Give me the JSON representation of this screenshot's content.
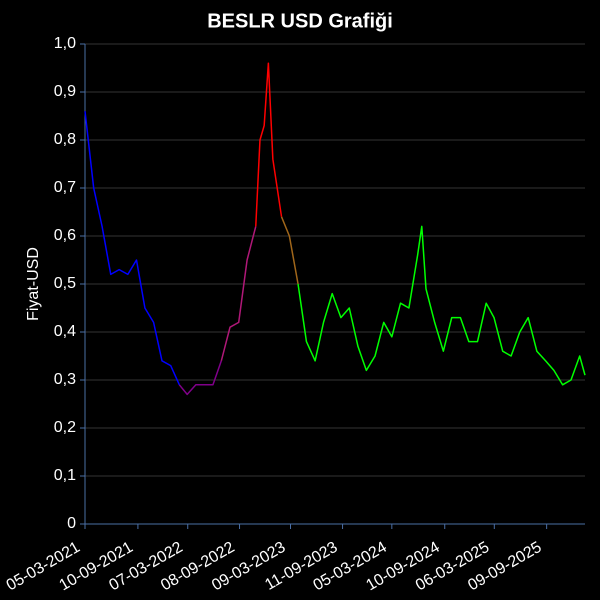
{
  "chart_data": {
    "type": "line",
    "title": "BESLR USD Grafiği",
    "y_label": "Fiyat-USD",
    "xlim": [
      "05-03-2021",
      "24-01-2026"
    ],
    "xticks": [
      "05-03-2021",
      "10-09-2021",
      "07-03-2022",
      "08-09-2022",
      "09-03-2023",
      "11-09-2023",
      "05-03-2024",
      "10-09-2024",
      "06-03-2025",
      "09-09-2025"
    ],
    "ylim": [
      0,
      1
    ],
    "yticks": [
      0,
      {
        "value": 0.1,
        "label": "0,1"
      },
      {
        "value": 0.2,
        "label": "0,2"
      },
      {
        "value": 0.3,
        "label": "0,3"
      },
      {
        "value": 0.4,
        "label": "0,4"
      },
      {
        "value": 0.5,
        "label": "0,5"
      },
      {
        "value": 0.6,
        "label": "0,6"
      },
      {
        "value": 0.7,
        "label": "0,7"
      },
      {
        "value": 0.8,
        "label": "0,8"
      },
      {
        "value": 0.9,
        "label": "0,9"
      },
      {
        "value": 1,
        "label": "1,0"
      }
    ],
    "grid": true,
    "series": [
      {
        "color": "#0000ff",
        "x": [
          "05-03-2021",
          "05-04-2021",
          "05-05-2021",
          "05-06-2021",
          "05-07-2021",
          "05-08-2021",
          "05-09-2021",
          "05-10-2021",
          "05-11-2021",
          "05-12-2021",
          "05-01-2022",
          "05-02-2022"
        ],
        "values": [
          0.86,
          0.7,
          0.62,
          0.52,
          0.53,
          0.52,
          0.55,
          0.45,
          0.42,
          0.34,
          0.33,
          0.29
        ]
      },
      {
        "color": "#80008a",
        "x": [
          "05-02-2022",
          "05-03-2022",
          "05-04-2022",
          "05-05-2022",
          "05-06-2022",
          "05-07-2022"
        ],
        "values": [
          0.29,
          0.27,
          0.29,
          0.29,
          0.29,
          0.34
        ]
      },
      {
        "color": "#b01878",
        "x": [
          "05-07-2022",
          "05-08-2022",
          "05-09-2022",
          "05-10-2022",
          "05-11-2022"
        ],
        "values": [
          0.34,
          0.41,
          0.42,
          0.55,
          0.62
        ]
      },
      {
        "color": "#ff0000",
        "x": [
          "05-11-2022",
          "20-11-2022",
          "05-12-2022",
          "20-12-2022",
          "05-01-2023",
          "05-02-2023"
        ],
        "values": [
          0.62,
          0.8,
          0.83,
          0.96,
          0.76,
          0.64
        ]
      },
      {
        "color": "#a0661a",
        "x": [
          "05-02-2023",
          "05-03-2023",
          "05-04-2023"
        ],
        "values": [
          0.64,
          0.6,
          0.5
        ]
      },
      {
        "color": "#00ff00",
        "x": [
          "05-04-2023",
          "05-05-2023",
          "05-06-2023",
          "05-07-2023",
          "05-08-2023",
          "05-09-2023",
          "05-10-2023",
          "05-11-2023",
          "05-12-2023",
          "05-01-2024",
          "05-02-2024",
          "05-03-2024",
          "05-04-2024",
          "05-05-2024",
          "05-06-2024",
          "20-06-2024",
          "05-07-2024",
          "05-08-2024",
          "05-09-2024",
          "05-10-2024",
          "05-11-2024",
          "05-12-2024",
          "05-01-2025",
          "05-02-2025",
          "05-03-2025",
          "05-04-2025",
          "05-05-2025",
          "05-06-2025",
          "05-07-2025",
          "05-08-2025",
          "05-09-2025",
          "05-10-2025",
          "05-11-2025",
          "05-12-2025",
          "05-01-2026",
          "24-01-2026"
        ],
        "values": [
          0.5,
          0.38,
          0.34,
          0.42,
          0.48,
          0.43,
          0.45,
          0.37,
          0.32,
          0.35,
          0.42,
          0.39,
          0.46,
          0.45,
          0.56,
          0.62,
          0.49,
          0.42,
          0.36,
          0.43,
          0.43,
          0.38,
          0.38,
          0.46,
          0.43,
          0.36,
          0.35,
          0.4,
          0.43,
          0.36,
          0.34,
          0.32,
          0.29,
          0.3,
          0.35,
          0.31
        ]
      }
    ]
  }
}
